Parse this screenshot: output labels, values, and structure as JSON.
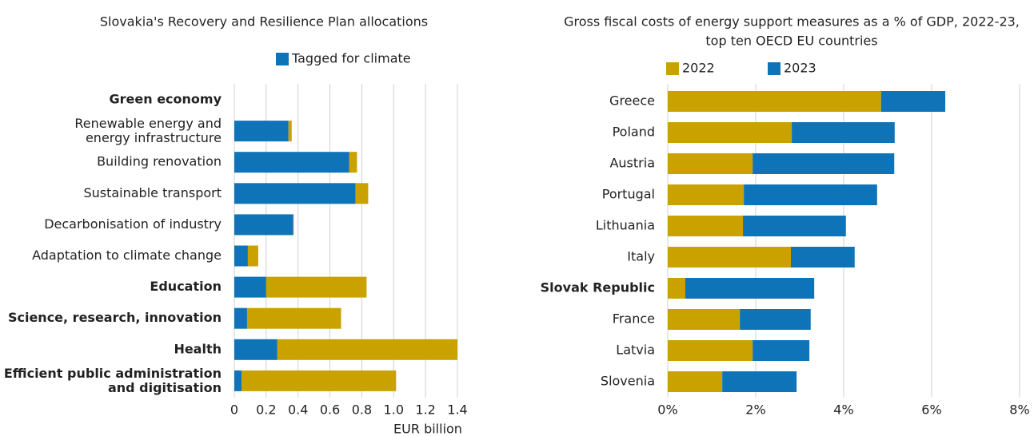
{
  "chart_data": [
    {
      "type": "bar",
      "orientation": "horizontal",
      "stacked": true,
      "title": [
        "Slovakia's Recovery and Resilience Plan allocations"
      ],
      "categories": [
        "Green economy",
        "Renewable energy and\nenergy infrastructure",
        "Building renovation",
        "Sustainable transport",
        "Decarbonisation of industry",
        "Adaptation to climate change",
        "Education",
        "Science, research, innovation",
        "Health",
        "Efficient public administration\nand digitisation"
      ],
      "bold": [
        true,
        false,
        false,
        false,
        false,
        false,
        true,
        true,
        true,
        true
      ],
      "series": [
        {
          "name": "Tagged for climate",
          "color": "#0f73b8",
          "values": [
            null,
            0.34,
            0.72,
            0.76,
            0.37,
            0.085,
            0.2,
            0.08,
            0.27,
            0.045
          ]
        },
        {
          "color": "#c9a200",
          "values": [
            null,
            0.02,
            0.05,
            0.08,
            0.003,
            0.065,
            0.63,
            0.59,
            1.13,
            0.97
          ]
        }
      ],
      "xlabel": "EUR billion",
      "xlim": [
        0,
        1.4
      ],
      "xticks": [
        0,
        0.2,
        0.4,
        0.6,
        0.8,
        {
          "value": 1,
          "label": "1.0"
        },
        1.2,
        1.4
      ],
      "grid": true
    },
    {
      "type": "bar",
      "orientation": "horizontal",
      "stacked": true,
      "title": [
        "Gross fiscal costs of energy support measures as a % of GDP, 2022-23,",
        "top ten OECD EU countries"
      ],
      "categories": [
        "Greece",
        "Poland",
        "Austria",
        "Portugal",
        "Lithuania",
        "Italy",
        "Slovak Republic",
        "France",
        "Latvia",
        "Slovenia"
      ],
      "highlight": [
        false,
        false,
        false,
        false,
        false,
        false,
        true,
        false,
        false,
        false
      ],
      "highlight_color": "#0f73b8",
      "series": [
        {
          "name": "2022",
          "color": "#c9a200",
          "values": [
            4.85,
            2.82,
            1.93,
            1.73,
            1.71,
            2.8,
            0.4,
            1.64,
            1.93,
            1.24
          ]
        },
        {
          "name": "2023",
          "color": "#0f73b8",
          "values": [
            1.46,
            2.34,
            3.22,
            3.03,
            2.34,
            1.45,
            2.93,
            1.61,
            1.29,
            1.69
          ]
        }
      ],
      "xlim": [
        0,
        8
      ],
      "xticks": [
        {
          "value": 0,
          "label": "0%"
        },
        {
          "value": 2,
          "label": "2%"
        },
        {
          "value": 4,
          "label": "4%"
        },
        {
          "value": 6,
          "label": "6%"
        },
        {
          "value": 8,
          "label": "8%"
        }
      ],
      "grid": true
    }
  ]
}
